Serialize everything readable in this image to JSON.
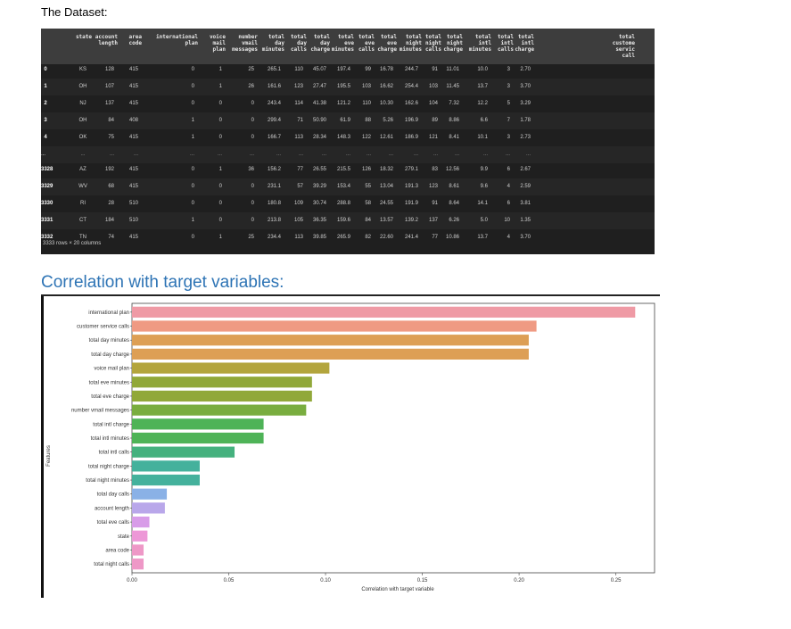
{
  "headings": {
    "dataset": "The Dataset:",
    "correlation": "Correlation with target variables:"
  },
  "table": {
    "columns": [
      "state",
      "account\nlength",
      "area\ncode",
      "international\nplan",
      "voice\nmail\nplan",
      "number\nvmail\nmessages",
      "total\nday\nminutes",
      "total\nday\ncalls",
      "total\nday\ncharge",
      "total\neve\nminutes",
      "total\neve\ncalls",
      "total\neve\ncharge",
      "total\nnight\nminutes",
      "total\nnight\ncalls",
      "total\nnight\ncharge",
      "total\nintl\nminutes",
      "total\nintl\ncalls",
      "total\nintl\ncharge",
      "total\ncustome\nservic\ncall"
    ],
    "rows": [
      {
        "idx": "0",
        "cells": [
          "KS",
          "128",
          "415",
          "0",
          "1",
          "25",
          "265.1",
          "110",
          "45.07",
          "197.4",
          "99",
          "16.78",
          "244.7",
          "91",
          "11.01",
          "10.0",
          "3",
          "2.70",
          ""
        ]
      },
      {
        "idx": "1",
        "cells": [
          "OH",
          "107",
          "415",
          "0",
          "1",
          "26",
          "161.6",
          "123",
          "27.47",
          "195.5",
          "103",
          "16.62",
          "254.4",
          "103",
          "11.45",
          "13.7",
          "3",
          "3.70",
          ""
        ]
      },
      {
        "idx": "2",
        "cells": [
          "NJ",
          "137",
          "415",
          "0",
          "0",
          "0",
          "243.4",
          "114",
          "41.38",
          "121.2",
          "110",
          "10.30",
          "162.6",
          "104",
          "7.32",
          "12.2",
          "5",
          "3.29",
          ""
        ]
      },
      {
        "idx": "3",
        "cells": [
          "OH",
          "84",
          "408",
          "1",
          "0",
          "0",
          "299.4",
          "71",
          "50.90",
          "61.9",
          "88",
          "5.26",
          "196.9",
          "89",
          "8.86",
          "6.6",
          "7",
          "1.78",
          ""
        ]
      },
      {
        "idx": "4",
        "cells": [
          "OK",
          "75",
          "415",
          "1",
          "0",
          "0",
          "166.7",
          "113",
          "28.34",
          "148.3",
          "122",
          "12.61",
          "186.9",
          "121",
          "8.41",
          "10.1",
          "3",
          "2.73",
          ""
        ]
      },
      {
        "idx": "...",
        "cells": [
          "...",
          "...",
          "...",
          "...",
          "...",
          "...",
          "...",
          "...",
          "...",
          "...",
          "...",
          "...",
          "...",
          "...",
          "...",
          "...",
          "...",
          "...",
          ""
        ]
      },
      {
        "idx": "3328",
        "cells": [
          "AZ",
          "192",
          "415",
          "0",
          "1",
          "36",
          "156.2",
          "77",
          "26.55",
          "215.5",
          "126",
          "18.32",
          "279.1",
          "83",
          "12.56",
          "9.9",
          "6",
          "2.67",
          ""
        ]
      },
      {
        "idx": "3329",
        "cells": [
          "WV",
          "68",
          "415",
          "0",
          "0",
          "0",
          "231.1",
          "57",
          "39.29",
          "153.4",
          "55",
          "13.04",
          "191.3",
          "123",
          "8.61",
          "9.6",
          "4",
          "2.59",
          ""
        ]
      },
      {
        "idx": "3330",
        "cells": [
          "RI",
          "28",
          "510",
          "0",
          "0",
          "0",
          "180.8",
          "109",
          "30.74",
          "288.8",
          "58",
          "24.55",
          "191.9",
          "91",
          "8.64",
          "14.1",
          "6",
          "3.81",
          ""
        ]
      },
      {
        "idx": "3331",
        "cells": [
          "CT",
          "184",
          "510",
          "1",
          "0",
          "0",
          "213.8",
          "105",
          "36.35",
          "159.6",
          "84",
          "13.57",
          "139.2",
          "137",
          "6.26",
          "5.0",
          "10",
          "1.35",
          ""
        ]
      },
      {
        "idx": "3332",
        "cells": [
          "TN",
          "74",
          "415",
          "0",
          "1",
          "25",
          "234.4",
          "113",
          "39.85",
          "265.9",
          "82",
          "22.60",
          "241.4",
          "77",
          "10.86",
          "13.7",
          "4",
          "3.70",
          ""
        ]
      }
    ],
    "footer": "3333 rows × 20 columns"
  },
  "chart_data": {
    "type": "bar",
    "orientation": "horizontal",
    "title": "",
    "xlabel": "Correlation with target variable",
    "ylabel": "Features",
    "xlim": [
      0,
      0.27
    ],
    "xticks": [
      "0.00",
      "0.05",
      "0.10",
      "0.15",
      "0.20",
      "0.25"
    ],
    "categories": [
      "international plan",
      "customer service calls",
      "total day minutes",
      "total day charge",
      "voice mail plan",
      "total eve minutes",
      "total eve charge",
      "number vmail messages",
      "total intl charge",
      "total intl minutes",
      "total intl calls",
      "total night charge",
      "total night minutes",
      "total day calls",
      "account length",
      "total eve calls",
      "state",
      "area code",
      "total night calls"
    ],
    "values": [
      0.26,
      0.209,
      0.205,
      0.205,
      0.102,
      0.093,
      0.093,
      0.09,
      0.068,
      0.068,
      0.053,
      0.035,
      0.035,
      0.018,
      0.017,
      0.009,
      0.008,
      0.006,
      0.006
    ],
    "colors": [
      "#ef9aa5",
      "#ef9a83",
      "#dd9f55",
      "#dd9f55",
      "#b3a53d",
      "#91a839",
      "#91a839",
      "#79ad3f",
      "#4eb357",
      "#4eb357",
      "#45b17e",
      "#44b19c",
      "#44b19c",
      "#8ab1e6",
      "#b9a7ea",
      "#d89ce8",
      "#ed98d7",
      "#ee98c7",
      "#ee98c7"
    ]
  }
}
